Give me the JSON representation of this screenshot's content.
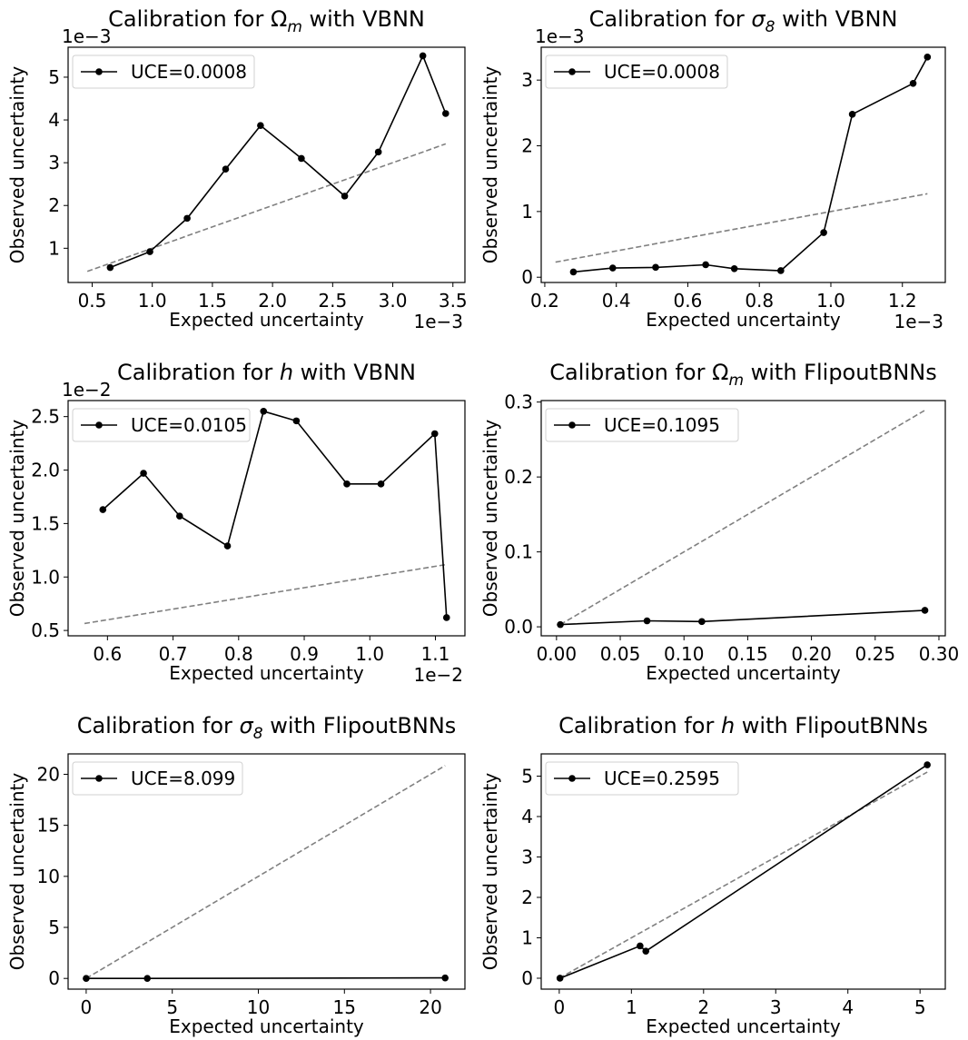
{
  "chart_data": [
    {
      "type": "line",
      "title_parts": [
        {
          "t": "Calibration for "
        },
        {
          "t": "Ω",
          "style": "normal"
        },
        {
          "t": "m",
          "sub": true
        },
        {
          "t": " with VBNN"
        }
      ],
      "xlabel": "Expected uncertainty",
      "ylabel": "Observed uncertainty",
      "xlim": [
        0.3,
        3.6
      ],
      "ylim": [
        0.2,
        5.7
      ],
      "xticks": [
        0.5,
        1.0,
        1.5,
        2.0,
        2.5,
        3.0,
        3.5
      ],
      "xtick_labels": [
        "0.5",
        "1.0",
        "1.5",
        "2.0",
        "2.5",
        "3.0",
        "3.5"
      ],
      "yticks": [
        1,
        2,
        3,
        4,
        5
      ],
      "ytick_labels": [
        "1",
        "2",
        "3",
        "4",
        "5"
      ],
      "x_offset": "1e−3",
      "y_offset": "1e−3",
      "series": [
        {
          "name": "UCE=0.0008",
          "x": [
            0.65,
            0.98,
            1.29,
            1.61,
            1.9,
            2.24,
            2.6,
            2.88,
            3.25,
            3.44
          ],
          "y": [
            0.55,
            0.92,
            1.7,
            2.85,
            3.87,
            3.1,
            2.22,
            3.25,
            5.5,
            4.15
          ]
        }
      ],
      "reference": {
        "x": [
          0.46,
          3.44
        ],
        "y": [
          0.46,
          3.44
        ]
      },
      "legend": "UCE=0.0008"
    },
    {
      "type": "line",
      "title_parts": [
        {
          "t": "Calibration for "
        },
        {
          "t": "σ",
          "style": "italic"
        },
        {
          "t": "8",
          "sub": true
        },
        {
          "t": " with VBNN"
        }
      ],
      "xlabel": "Expected uncertainty",
      "ylabel": "Observed uncertainty",
      "xlim": [
        0.19,
        1.32
      ],
      "ylim": [
        -0.08,
        3.5
      ],
      "xticks": [
        0.2,
        0.4,
        0.6,
        0.8,
        1.0,
        1.2
      ],
      "xtick_labels": [
        "0.2",
        "0.4",
        "0.6",
        "0.8",
        "1.0",
        "1.2"
      ],
      "yticks": [
        0,
        1,
        2,
        3
      ],
      "ytick_labels": [
        "0",
        "1",
        "2",
        "3"
      ],
      "x_offset": "1e−3",
      "y_offset": "1e−3",
      "series": [
        {
          "name": "UCE=0.0008",
          "x": [
            0.28,
            0.39,
            0.51,
            0.65,
            0.73,
            0.86,
            0.98,
            1.06,
            1.23,
            1.27
          ],
          "y": [
            0.08,
            0.14,
            0.15,
            0.19,
            0.13,
            0.1,
            0.68,
            2.48,
            2.95,
            3.35
          ]
        }
      ],
      "reference": {
        "x": [
          0.23,
          1.27
        ],
        "y": [
          0.23,
          1.27
        ]
      },
      "legend": "UCE=0.0008"
    },
    {
      "type": "line",
      "title_parts": [
        {
          "t": "Calibration for "
        },
        {
          "t": "h",
          "style": "italic"
        },
        {
          "t": " with VBNN"
        }
      ],
      "xlabel": "Expected uncertainty",
      "ylabel": "Observed uncertainty",
      "xlim": [
        0.54,
        1.145
      ],
      "ylim": [
        0.45,
        2.65
      ],
      "xticks": [
        0.6,
        0.7,
        0.8,
        0.9,
        1.0,
        1.1
      ],
      "xtick_labels": [
        "0.6",
        "0.7",
        "0.8",
        "0.9",
        "1.0",
        "1.1"
      ],
      "yticks": [
        0.5,
        1.0,
        1.5,
        2.0,
        2.5
      ],
      "ytick_labels": [
        "0.5",
        "1.0",
        "1.5",
        "2.0",
        "2.5"
      ],
      "x_offset": "1e−2",
      "y_offset": "1e−2",
      "series": [
        {
          "name": "UCE=0.0105",
          "x": [
            0.593,
            0.655,
            0.71,
            0.783,
            0.838,
            0.888,
            0.965,
            1.017,
            1.099,
            1.117
          ],
          "y": [
            1.63,
            1.97,
            1.57,
            1.29,
            2.55,
            2.46,
            1.87,
            1.87,
            2.34,
            0.62
          ]
        }
      ],
      "reference": {
        "x": [
          0.565,
          1.117
        ],
        "y": [
          0.565,
          1.117
        ]
      },
      "legend": "UCE=0.0105"
    },
    {
      "type": "line",
      "title_parts": [
        {
          "t": "Calibration for "
        },
        {
          "t": "Ω",
          "style": "normal"
        },
        {
          "t": "m",
          "sub": true
        },
        {
          "t": " with FlipoutBNNs"
        }
      ],
      "xlabel": "Expected uncertainty",
      "ylabel": "Observed uncertainty",
      "xlim": [
        -0.012,
        0.305
      ],
      "ylim": [
        -0.012,
        0.302
      ],
      "xticks": [
        0,
        0.05,
        0.1,
        0.15,
        0.2,
        0.25,
        0.3
      ],
      "xtick_labels": [
        "0.00",
        "0.05",
        "0.10",
        "0.15",
        "0.20",
        "0.25",
        "0.30"
      ],
      "yticks": [
        0,
        0.1,
        0.2,
        0.3
      ],
      "ytick_labels": [
        "0.0",
        "0.1",
        "0.2",
        "0.3"
      ],
      "series": [
        {
          "name": "UCE=0.1095",
          "x": [
            0.003,
            0.071,
            0.114,
            0.289
          ],
          "y": [
            0.003,
            0.008,
            0.007,
            0.022
          ]
        }
      ],
      "reference": {
        "x": [
          0.003,
          0.289
        ],
        "y": [
          0.003,
          0.289
        ]
      },
      "legend": "UCE=0.1095"
    },
    {
      "type": "line",
      "title_parts": [
        {
          "t": "Calibration for "
        },
        {
          "t": "σ",
          "style": "italic"
        },
        {
          "t": "8",
          "sub": true
        },
        {
          "t": "  with FlipoutBNNs"
        }
      ],
      "xlabel": "Expected uncertainty",
      "ylabel": "Observed uncertainty",
      "xlim": [
        -1.05,
        22.0
      ],
      "ylim": [
        -1.05,
        22.0
      ],
      "xticks": [
        0,
        5,
        10,
        15,
        20
      ],
      "xtick_labels": [
        "0",
        "5",
        "10",
        "15",
        "20"
      ],
      "yticks": [
        0,
        5,
        10,
        15,
        20
      ],
      "ytick_labels": [
        "0",
        "5",
        "10",
        "15",
        "20"
      ],
      "series": [
        {
          "name": "UCE=8.099",
          "x": [
            0.0,
            3.55,
            20.85
          ],
          "y": [
            0.0,
            0.0,
            0.05
          ]
        }
      ],
      "reference": {
        "x": [
          0.0,
          20.85
        ],
        "y": [
          0.0,
          20.85
        ]
      },
      "legend": "UCE=8.099"
    },
    {
      "type": "line",
      "title_parts": [
        {
          "t": "Calibration for "
        },
        {
          "t": "h",
          "style": "italic"
        },
        {
          "t": " with FlipoutBNNs"
        }
      ],
      "xlabel": "Expected uncertainty",
      "ylabel": "Observed uncertainty",
      "xlim": [
        -0.25,
        5.35
      ],
      "ylim": [
        -0.27,
        5.55
      ],
      "xticks": [
        0,
        1,
        2,
        3,
        4,
        5
      ],
      "xtick_labels": [
        "0",
        "1",
        "2",
        "3",
        "4",
        "5"
      ],
      "yticks": [
        0,
        1,
        2,
        3,
        4,
        5
      ],
      "ytick_labels": [
        "0",
        "1",
        "2",
        "3",
        "4",
        "5"
      ],
      "series": [
        {
          "name": "UCE=0.2595",
          "x": [
            0.01,
            1.12,
            1.2,
            5.1
          ],
          "y": [
            0.0,
            0.8,
            0.67,
            5.28
          ]
        }
      ],
      "reference": {
        "x": [
          0.0,
          5.1
        ],
        "y": [
          0.0,
          5.1
        ]
      },
      "legend": "UCE=0.2595"
    }
  ]
}
